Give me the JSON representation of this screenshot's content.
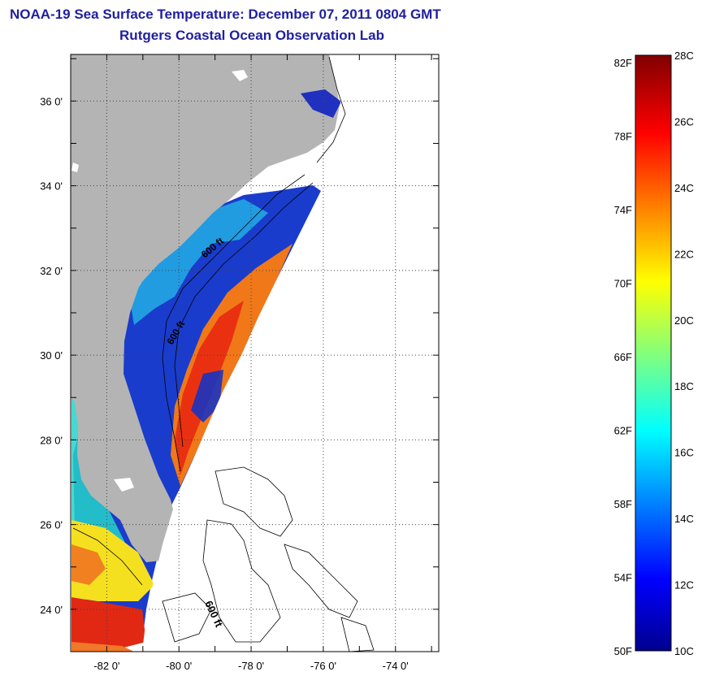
{
  "title": "NOAA-19 Sea Surface Temperature:  December 07, 2011 0804 GMT",
  "subtitle": "Rutgers Coastal Ocean Observation Lab",
  "map": {
    "lat_labels": [
      "36 0'",
      "34 0'",
      "32 0'",
      "30 0'",
      "28 0'",
      "26 0'",
      "24 0'"
    ],
    "lat_values": [
      36,
      34,
      32,
      30,
      28,
      26,
      24
    ],
    "lon_labels": [
      "-82 0'",
      "-80 0'",
      "-78 0'",
      "-76 0'",
      "-74 0'"
    ],
    "lon_values": [
      -82,
      -80,
      -78,
      -76,
      -74
    ],
    "lat_range": [
      23.0,
      37.1
    ],
    "lon_range": [
      -83.0,
      -72.8
    ],
    "grid": "dotted",
    "contour_labels": [
      "600 ft",
      "600 ft",
      "600 ft"
    ],
    "colors": {
      "land": "#b4b4b4",
      "no_data": "#ffffff",
      "contour": "#000000"
    }
  },
  "colorbar": {
    "fahrenheit_labels": [
      "82F",
      "78F",
      "74F",
      "70F",
      "66F",
      "62F",
      "58F",
      "54F",
      "50F"
    ],
    "celsius_labels": [
      "28C",
      "26C",
      "24C",
      "22C",
      "20C",
      "18C",
      "16C",
      "14C",
      "12C",
      "10C"
    ],
    "range_c": [
      10,
      28
    ],
    "colormap": "jet"
  }
}
